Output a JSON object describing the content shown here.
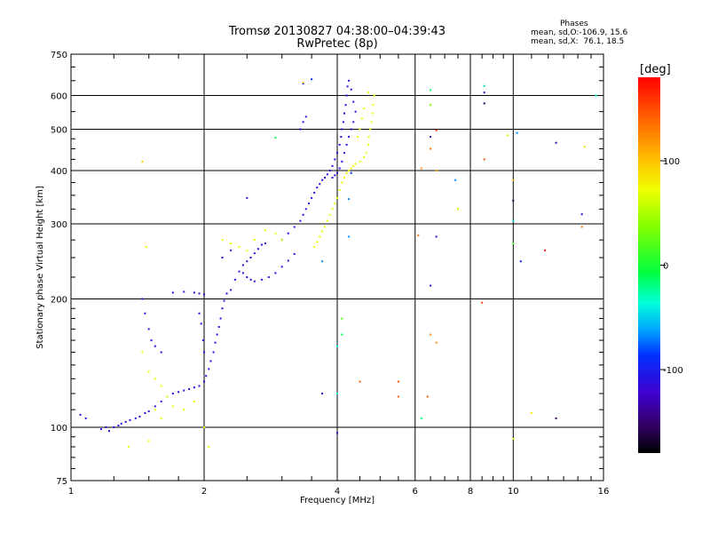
{
  "chart_data": {
    "type": "scatter",
    "title": "Tromsø 20130827 04:38:00–04:39:43",
    "subtitle": "RwPretec (8p)",
    "xlabel": "Frequency [MHz]",
    "ylabel": "Stationary phase Virtual Height [km]",
    "x_scale": "log",
    "y_scale": "log",
    "xlim": [
      1,
      16
    ],
    "ylim": [
      75,
      750
    ],
    "x_ticks": [
      1,
      2,
      4,
      6,
      8,
      10,
      16
    ],
    "y_ticks": [
      75,
      100,
      200,
      300,
      400,
      500,
      600,
      750
    ],
    "grid": true,
    "phase_legend": {
      "title": "Phases",
      "line1": "mean, sd,O:-106.9, 15.6",
      "line2": "mean, sd,X:  76.1, 18.5"
    },
    "colorbar": {
      "label": "[deg]",
      "ticks": [
        100,
        0,
        -100
      ],
      "range": [
        -180,
        180
      ]
    },
    "series": [
      {
        "mode": "O",
        "phase_mean": -106.9,
        "points": [
          [
            1.05,
            107
          ],
          [
            1.08,
            105
          ],
          [
            1.17,
            99
          ],
          [
            1.2,
            100
          ],
          [
            1.22,
            98
          ],
          [
            1.25,
            100
          ],
          [
            1.28,
            101
          ],
          [
            1.3,
            102
          ],
          [
            1.33,
            103
          ],
          [
            1.36,
            104
          ],
          [
            1.4,
            105
          ],
          [
            1.43,
            106
          ],
          [
            1.47,
            108
          ],
          [
            1.5,
            109
          ],
          [
            1.55,
            112
          ],
          [
            1.6,
            115
          ],
          [
            1.65,
            118
          ],
          [
            1.7,
            120
          ],
          [
            1.75,
            121
          ],
          [
            1.8,
            122
          ],
          [
            1.85,
            123
          ],
          [
            1.9,
            124
          ],
          [
            1.95,
            125
          ],
          [
            2.0,
            128
          ],
          [
            2.02,
            132
          ],
          [
            2.05,
            137
          ],
          [
            2.07,
            143
          ],
          [
            2.1,
            150
          ],
          [
            2.12,
            158
          ],
          [
            2.14,
            165
          ],
          [
            2.16,
            172
          ],
          [
            2.18,
            180
          ],
          [
            2.2,
            190
          ],
          [
            2.22,
            198
          ],
          [
            2.25,
            206
          ],
          [
            1.7,
            207
          ],
          [
            1.8,
            208
          ],
          [
            1.9,
            207
          ],
          [
            1.95,
            206
          ],
          [
            2.0,
            205
          ],
          [
            1.95,
            185
          ],
          [
            1.97,
            175
          ],
          [
            1.99,
            160
          ],
          [
            2.0,
            150
          ],
          [
            1.45,
            200
          ],
          [
            1.47,
            185
          ],
          [
            1.5,
            170
          ],
          [
            1.52,
            160
          ],
          [
            1.55,
            155
          ],
          [
            1.6,
            150
          ],
          [
            2.3,
            210
          ],
          [
            2.35,
            222
          ],
          [
            2.4,
            232
          ],
          [
            2.45,
            240
          ],
          [
            2.5,
            245
          ],
          [
            2.55,
            250
          ],
          [
            2.6,
            256
          ],
          [
            2.65,
            262
          ],
          [
            2.7,
            268
          ],
          [
            2.75,
            270
          ],
          [
            2.45,
            230
          ],
          [
            2.5,
            225
          ],
          [
            2.55,
            222
          ],
          [
            2.6,
            220
          ],
          [
            2.7,
            222
          ],
          [
            2.8,
            225
          ],
          [
            2.9,
            230
          ],
          [
            3.0,
            238
          ],
          [
            3.1,
            246
          ],
          [
            3.2,
            255
          ],
          [
            3.0,
            275
          ],
          [
            3.1,
            285
          ],
          [
            3.2,
            295
          ],
          [
            3.3,
            305
          ],
          [
            3.35,
            315
          ],
          [
            3.4,
            325
          ],
          [
            3.45,
            335
          ],
          [
            3.5,
            345
          ],
          [
            3.55,
            355
          ],
          [
            3.6,
            365
          ],
          [
            3.65,
            372
          ],
          [
            3.7,
            380
          ],
          [
            3.75,
            385
          ],
          [
            3.8,
            392
          ],
          [
            3.85,
            400
          ],
          [
            3.9,
            410
          ],
          [
            3.95,
            425
          ],
          [
            4.0,
            440
          ],
          [
            4.05,
            460
          ],
          [
            4.08,
            480
          ],
          [
            4.1,
            500
          ],
          [
            4.13,
            520
          ],
          [
            4.15,
            545
          ],
          [
            4.18,
            570
          ],
          [
            4.2,
            600
          ],
          [
            4.22,
            630
          ],
          [
            4.25,
            650
          ],
          [
            4.3,
            620
          ],
          [
            4.35,
            580
          ],
          [
            4.4,
            550
          ],
          [
            4.35,
            520
          ],
          [
            4.3,
            500
          ],
          [
            4.25,
            480
          ],
          [
            4.2,
            460
          ],
          [
            4.15,
            440
          ],
          [
            4.1,
            420
          ],
          [
            4.05,
            405
          ],
          [
            4.0,
            395
          ],
          [
            3.95,
            390
          ],
          [
            3.9,
            385
          ],
          [
            3.3,
            500
          ],
          [
            3.35,
            520
          ],
          [
            3.4,
            535
          ],
          [
            3.35,
            640
          ],
          [
            2.5,
            345
          ],
          [
            2.3,
            260
          ],
          [
            2.2,
            250
          ],
          [
            4.0,
            97
          ]
        ]
      },
      {
        "mode": "X",
        "phase_mean": 76.1,
        "points": [
          [
            3.55,
            265
          ],
          [
            3.6,
            272
          ],
          [
            3.65,
            280
          ],
          [
            3.7,
            288
          ],
          [
            3.75,
            295
          ],
          [
            3.8,
            305
          ],
          [
            3.85,
            315
          ],
          [
            3.9,
            325
          ],
          [
            3.95,
            335
          ],
          [
            4.0,
            345
          ],
          [
            4.05,
            360
          ],
          [
            4.1,
            375
          ],
          [
            4.15,
            385
          ],
          [
            4.2,
            395
          ],
          [
            4.25,
            400
          ],
          [
            4.3,
            405
          ],
          [
            4.35,
            410
          ],
          [
            4.4,
            415
          ],
          [
            4.5,
            420
          ],
          [
            4.6,
            430
          ],
          [
            4.65,
            440
          ],
          [
            4.7,
            460
          ],
          [
            4.72,
            480
          ],
          [
            4.75,
            500
          ],
          [
            4.78,
            520
          ],
          [
            4.8,
            545
          ],
          [
            4.82,
            570
          ],
          [
            4.85,
            600
          ],
          [
            4.7,
            610
          ],
          [
            4.6,
            560
          ],
          [
            4.55,
            530
          ],
          [
            4.5,
            500
          ],
          [
            4.45,
            480
          ],
          [
            1.45,
            150
          ],
          [
            1.5,
            135
          ],
          [
            1.55,
            130
          ],
          [
            1.6,
            125
          ],
          [
            1.65,
            118
          ],
          [
            1.7,
            112
          ],
          [
            1.8,
            110
          ],
          [
            1.35,
            90
          ],
          [
            1.5,
            93
          ],
          [
            1.55,
            110
          ],
          [
            1.6,
            105
          ],
          [
            1.9,
            115
          ],
          [
            2.0,
            100
          ],
          [
            2.05,
            90
          ],
          [
            2.2,
            275
          ],
          [
            2.3,
            270
          ],
          [
            2.4,
            265
          ],
          [
            2.5,
            260
          ],
          [
            2.6,
            275
          ],
          [
            2.75,
            290
          ],
          [
            2.9,
            285
          ],
          [
            3.0,
            275
          ]
        ]
      },
      {
        "mode": "noise",
        "points": [
          [
            6.5,
            618,
            0
          ],
          [
            6.5,
            570,
            40
          ],
          [
            6.5,
            480,
            -120
          ],
          [
            6.7,
            497,
            160
          ],
          [
            6.5,
            450,
            130
          ],
          [
            6.2,
            405,
            120
          ],
          [
            6.7,
            400,
            110
          ],
          [
            7.4,
            380,
            -60
          ],
          [
            7.5,
            325,
            60
          ],
          [
            6.1,
            282,
            130
          ],
          [
            6.7,
            280,
            -110
          ],
          [
            6.5,
            215,
            -120
          ],
          [
            6.5,
            165,
            120
          ],
          [
            6.7,
            158,
            120
          ],
          [
            6.4,
            118,
            140
          ],
          [
            6.2,
            105,
            -10
          ],
          [
            8.6,
            632,
            -20
          ],
          [
            8.6,
            610,
            -120
          ],
          [
            8.6,
            575,
            -160
          ],
          [
            8.6,
            425,
            140
          ],
          [
            8.5,
            196,
            150
          ],
          [
            9.7,
            484,
            60
          ],
          [
            10.2,
            490,
            -60
          ],
          [
            10.0,
            380,
            110
          ],
          [
            10.0,
            340,
            -160
          ],
          [
            10.0,
            305,
            -40
          ],
          [
            10.0,
            270,
            20
          ],
          [
            10.4,
            245,
            -90
          ],
          [
            11.8,
            260,
            170
          ],
          [
            10.0,
            94,
            60
          ],
          [
            11.0,
            108,
            80
          ],
          [
            12.5,
            465,
            -130
          ],
          [
            14.5,
            455,
            90
          ],
          [
            14.3,
            316,
            -110
          ],
          [
            14.3,
            295,
            130
          ],
          [
            15.4,
            600,
            -30
          ],
          [
            12.5,
            105,
            -150
          ],
          [
            5.5,
            128,
            150
          ],
          [
            5.5,
            118,
            140
          ],
          [
            4.5,
            128,
            140
          ],
          [
            4.0,
            120,
            -30
          ],
          [
            3.7,
            120,
            -120
          ],
          [
            4.25,
            343,
            -60
          ],
          [
            4.25,
            280,
            -60
          ],
          [
            3.7,
            245,
            -60
          ],
          [
            4.1,
            180,
            30
          ],
          [
            4.1,
            165,
            0
          ],
          [
            4.0,
            155,
            -30
          ],
          [
            4.3,
            395,
            -90
          ],
          [
            2.9,
            478,
            0
          ],
          [
            3.35,
            644,
            100
          ],
          [
            3.5,
            655,
            -90
          ],
          [
            1.48,
            265,
            80
          ],
          [
            1.45,
            420,
            100
          ]
        ]
      }
    ]
  }
}
